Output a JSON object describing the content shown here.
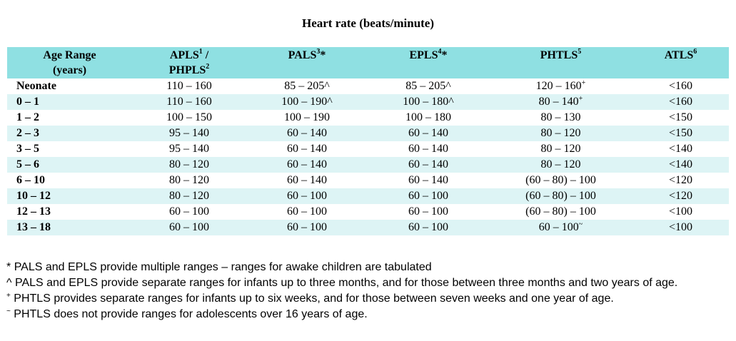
{
  "title": "Heart rate (beats/minute)",
  "headers": [
    {
      "line1": "Age Range",
      "line2": "(years)"
    },
    {
      "name": "APLS",
      "sup1": "1",
      "sep": " /",
      "name2": "PHPLS",
      "sup2": "2"
    },
    {
      "name": "PALS",
      "sup": "3",
      "mark": "*"
    },
    {
      "name": "EPLS",
      "sup": "4",
      "mark": "*"
    },
    {
      "name": "PHTLS",
      "sup": "5"
    },
    {
      "name": "ATLS",
      "sup": "6"
    }
  ],
  "rows": [
    {
      "age": "Neonate",
      "apls": "110 – 160",
      "pals": "85 – 205^",
      "epls": "85 – 205^",
      "phtls": "120 – 160",
      "phtls_sup": "+",
      "atls": "<160"
    },
    {
      "age": "0 – 1",
      "apls": "110 – 160",
      "pals": "100 – 190^",
      "epls": "100 – 180^",
      "phtls": "80 – 140",
      "phtls_sup": "+",
      "atls": "<160"
    },
    {
      "age": "1 – 2",
      "apls": "100 – 150",
      "pals": "100 – 190",
      "epls": "100 – 180",
      "phtls": "80 – 130",
      "phtls_sup": "",
      "atls": "<150"
    },
    {
      "age": "2 – 3",
      "apls": "95 – 140",
      "pals": "60 – 140",
      "epls": "60 – 140",
      "phtls": "80 – 120",
      "phtls_sup": "",
      "atls": "<150"
    },
    {
      "age": "3 – 5",
      "apls": "95 – 140",
      "pals": "60 – 140",
      "epls": "60 – 140",
      "phtls": "80 – 120",
      "phtls_sup": "",
      "atls": "<140"
    },
    {
      "age": "5 – 6",
      "apls": "80 – 120",
      "pals": "60 – 140",
      "epls": "60 – 140",
      "phtls": "80 – 120",
      "phtls_sup": "",
      "atls": "<140"
    },
    {
      "age": "6 – 10",
      "apls": "80 – 120",
      "pals": "60 – 140",
      "epls": "60 – 140",
      "phtls": "(60 – 80) – 100",
      "phtls_sup": "",
      "atls": "<120"
    },
    {
      "age": "10 – 12",
      "apls": "80 – 120",
      "pals": "60 – 100",
      "epls": "60 – 100",
      "phtls": "(60 – 80) – 100",
      "phtls_sup": "",
      "atls": "<120"
    },
    {
      "age": "12 – 13",
      "apls": "60 – 100",
      "pals": "60 – 100",
      "epls": "60 – 100",
      "phtls": "(60 – 80) – 100",
      "phtls_sup": "",
      "atls": "<100"
    },
    {
      "age": "13 – 18",
      "apls": "60 – 100",
      "pals": "60 – 100",
      "epls": "60 – 100",
      "phtls": "60 – 100",
      "phtls_sup": "~",
      "atls": "<100"
    }
  ],
  "footnotes": [
    {
      "mark": "*",
      "mark_sup": false,
      "text": "PALS and EPLS provide multiple ranges – ranges for awake children are tabulated"
    },
    {
      "mark": "^",
      "mark_sup": false,
      "text": "PALS and EPLS provide separate ranges for infants up to three months, and for those between three months and two years of age."
    },
    {
      "mark": "+",
      "mark_sup": true,
      "text": "PHTLS provides separate ranges for infants up to six weeks, and for those between seven weeks and one year of age."
    },
    {
      "mark": "~",
      "mark_sup": true,
      "text": "PHTLS does not provide ranges for adolescents over 16 years of age."
    }
  ],
  "colors": {
    "header_bg": "#8fe0e2",
    "stripe_bg": "#ddf4f5"
  }
}
